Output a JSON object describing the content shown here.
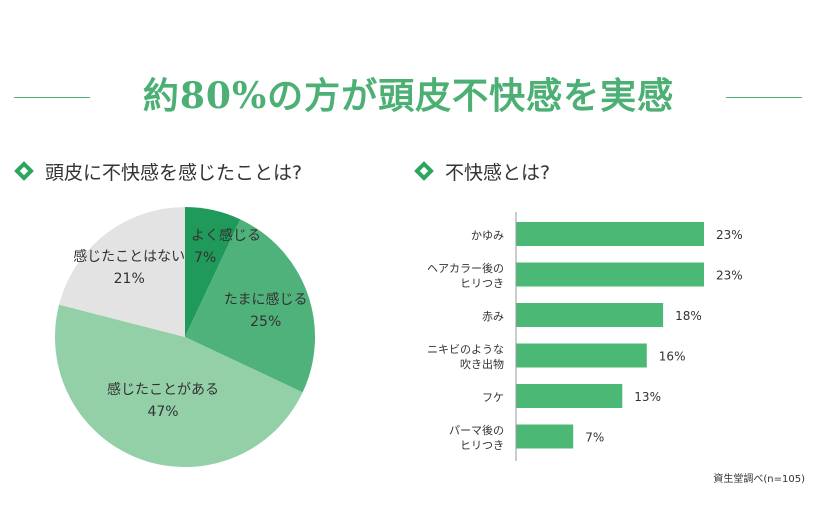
{
  "title": "約80%の方が頭皮不快感を実感",
  "accent_color": "#4caf74",
  "pie_section": {
    "heading": "頭皮に不快感を感じたことは?"
  },
  "bar_section": {
    "heading": "不快感とは?"
  },
  "source": "資生堂調べ(n=105)",
  "chart_data": [
    {
      "type": "pie",
      "title": "頭皮に不快感を感じたことは?",
      "slices": [
        {
          "label": "よく感じる",
          "value": 7,
          "value_label": "7%",
          "color": "#1f9a5a"
        },
        {
          "label": "たまに感じる",
          "value": 25,
          "value_label": "25%",
          "color": "#4fb27a"
        },
        {
          "label": "感じたことがある",
          "value": 47,
          "value_label": "47%",
          "color": "#93d0a8"
        },
        {
          "label": "感じたことはない",
          "value": 21,
          "value_label": "21%",
          "color": "#e3e3e3"
        }
      ],
      "start": "12 o'clock",
      "direction": "clockwise"
    },
    {
      "type": "bar",
      "orientation": "horizontal",
      "title": "不快感とは?",
      "categories": [
        "かゆみ",
        "ヘアカラー後の\nヒリつき",
        "赤み",
        "ニキビのような\n吹き出物",
        "フケ",
        "パーマ後の\nヒリつき"
      ],
      "values": [
        23,
        23,
        18,
        16,
        13,
        7
      ],
      "value_labels": [
        "23%",
        "23%",
        "18%",
        "16%",
        "13%",
        "7%"
      ],
      "unit": "%",
      "bar_color": "#4cb876",
      "xlim": [
        0,
        23
      ],
      "grid": false,
      "axis": "left"
    }
  ]
}
